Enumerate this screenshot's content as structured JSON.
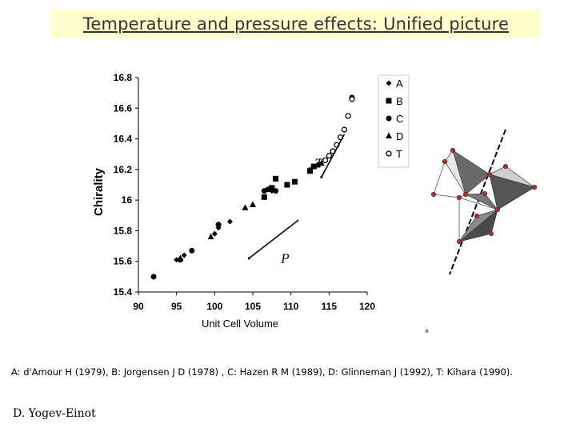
{
  "title": "Temperature and pressure effects: Unified picture",
  "chart_data": {
    "type": "scatter",
    "xlabel": "Unit Cell Volume",
    "ylabel": "Chirality",
    "xlim": [
      90,
      120
    ],
    "ylim": [
      15.4,
      16.8
    ],
    "xticks": [
      "90",
      "95",
      "100",
      "105",
      "110",
      "115",
      "120"
    ],
    "yticks": [
      "15.4",
      "15.6",
      "15.8",
      "16",
      "16.2",
      "16.4",
      "16.6",
      "16.8"
    ],
    "series": [
      {
        "name": "A",
        "marker": "diamond",
        "points": [
          [
            95.0,
            15.61
          ],
          [
            96.0,
            15.64
          ],
          [
            100.0,
            15.78
          ],
          [
            100.5,
            15.82
          ],
          [
            102.0,
            15.86
          ],
          [
            107.5,
            16.06
          ],
          [
            112.5,
            16.2
          ]
        ]
      },
      {
        "name": "B",
        "marker": "square",
        "points": [
          [
            106.5,
            16.02
          ],
          [
            107.5,
            16.08
          ],
          [
            108.0,
            16.14
          ],
          [
            109.5,
            16.1
          ],
          [
            110.5,
            16.12
          ],
          [
            112.5,
            16.19
          ],
          [
            113.0,
            16.22
          ]
        ]
      },
      {
        "name": "C",
        "marker": "circle",
        "points": [
          [
            92.0,
            15.5
          ],
          [
            95.5,
            15.61
          ],
          [
            97.0,
            15.67
          ],
          [
            100.5,
            15.84
          ],
          [
            106.5,
            16.06
          ],
          [
            107.0,
            16.07
          ],
          [
            108.0,
            16.06
          ],
          [
            118.0,
            16.67
          ]
        ]
      },
      {
        "name": "D",
        "marker": "triangle",
        "points": [
          [
            95.5,
            15.62
          ],
          [
            99.5,
            15.76
          ],
          [
            104.0,
            15.95
          ],
          [
            105.0,
            15.97
          ],
          [
            113.5,
            16.23
          ],
          [
            114.0,
            16.24
          ]
        ]
      },
      {
        "name": "T",
        "marker": "open-circle",
        "points": [
          [
            114.5,
            16.26
          ],
          [
            115.0,
            16.29
          ],
          [
            115.5,
            16.32
          ],
          [
            116.0,
            16.36
          ],
          [
            116.5,
            16.41
          ],
          [
            117.0,
            16.46
          ],
          [
            117.5,
            16.55
          ],
          [
            118.0,
            16.66
          ]
        ]
      }
    ],
    "annotations": [
      {
        "label": "T",
        "from": [
          114.0,
          16.15
        ],
        "to": [
          117.0,
          16.43
        ]
      },
      {
        "label": "P",
        "from": [
          104.5,
          15.62
        ],
        "to": [
          111.0,
          15.87
        ]
      }
    ],
    "legend": [
      "A",
      "B",
      "C",
      "D",
      "T"
    ],
    "legend_position": "right"
  },
  "references": "A: d'Amour H (1979), B: Jorgensen J D (1978) , C: Hazen R M (1989), D: Glinneman J (1992), T: Kihara (1990).",
  "author": "D. Yogev-Einot",
  "degree_mark": "°",
  "figure_right": {
    "description_label": "tetrahedra-structure-diagram"
  }
}
